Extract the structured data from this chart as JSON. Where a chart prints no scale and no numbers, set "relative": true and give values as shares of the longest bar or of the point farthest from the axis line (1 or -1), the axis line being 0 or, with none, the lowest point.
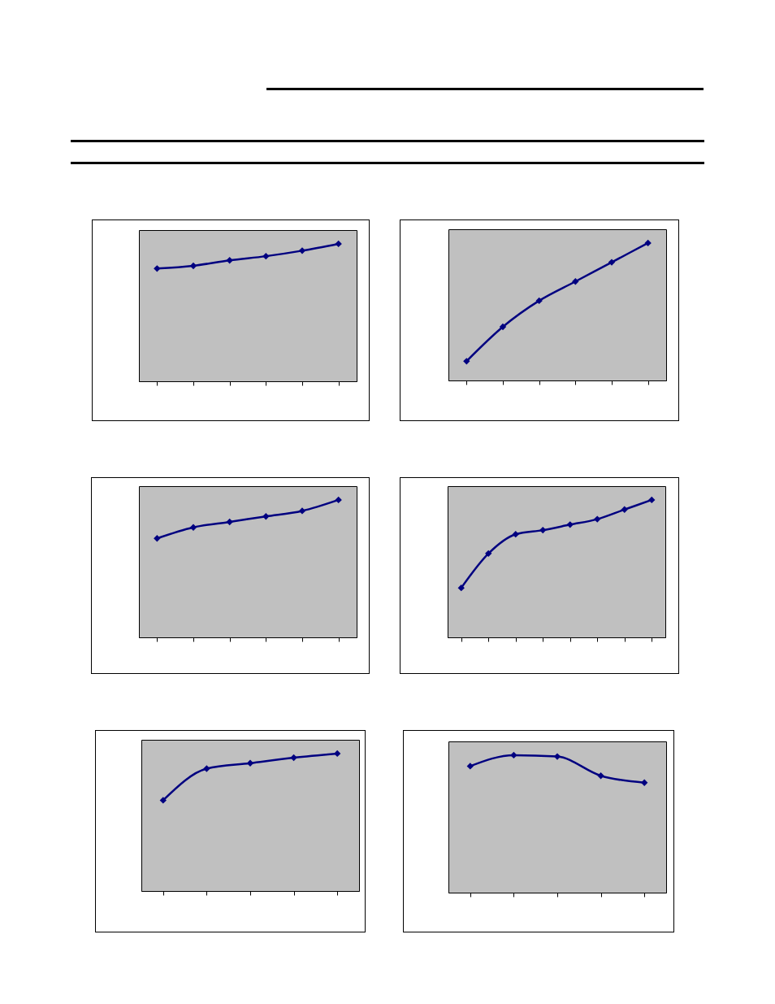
{
  "chart_data": [
    {
      "type": "line",
      "relative": true,
      "marker": "diamond",
      "categories": [
        null,
        null,
        null,
        null,
        null,
        null
      ],
      "series": [
        {
          "color": "#000080",
          "values": [
            0.82,
            0.84,
            0.88,
            0.91,
            0.95,
            1
          ]
        }
      ]
    },
    {
      "type": "line",
      "relative": true,
      "marker": "diamond",
      "categories": [
        null,
        null,
        null,
        null,
        null,
        null
      ],
      "series": [
        {
          "color": "#000080",
          "values": [
            0.14,
            0.39,
            0.58,
            0.72,
            0.86,
            1
          ]
        }
      ]
    },
    {
      "type": "line",
      "relative": true,
      "marker": "diamond",
      "categories": [
        null,
        null,
        null,
        null,
        null,
        null
      ],
      "series": [
        {
          "color": "#000080",
          "values": [
            0.72,
            0.8,
            0.84,
            0.88,
            0.92,
            1
          ]
        }
      ]
    },
    {
      "type": "line",
      "relative": true,
      "marker": "diamond",
      "categories": [
        null,
        null,
        null,
        null,
        null,
        null,
        null,
        null
      ],
      "series": [
        {
          "color": "#000080",
          "values": [
            0.36,
            0.61,
            0.75,
            0.78,
            0.82,
            0.86,
            0.93,
            1
          ]
        }
      ]
    },
    {
      "type": "line",
      "relative": true,
      "marker": "diamond",
      "categories": [
        null,
        null,
        null,
        null,
        null
      ],
      "series": [
        {
          "color": "#000080",
          "values": [
            0.66,
            0.89,
            0.93,
            0.97,
            1
          ]
        }
      ]
    },
    {
      "type": "line",
      "relative": true,
      "marker": "diamond",
      "categories": [
        null,
        null,
        null,
        null,
        null
      ],
      "series": [
        {
          "color": "#000080",
          "values": [
            0.92,
            1,
            0.99,
            0.85,
            0.8
          ]
        }
      ]
    }
  ]
}
